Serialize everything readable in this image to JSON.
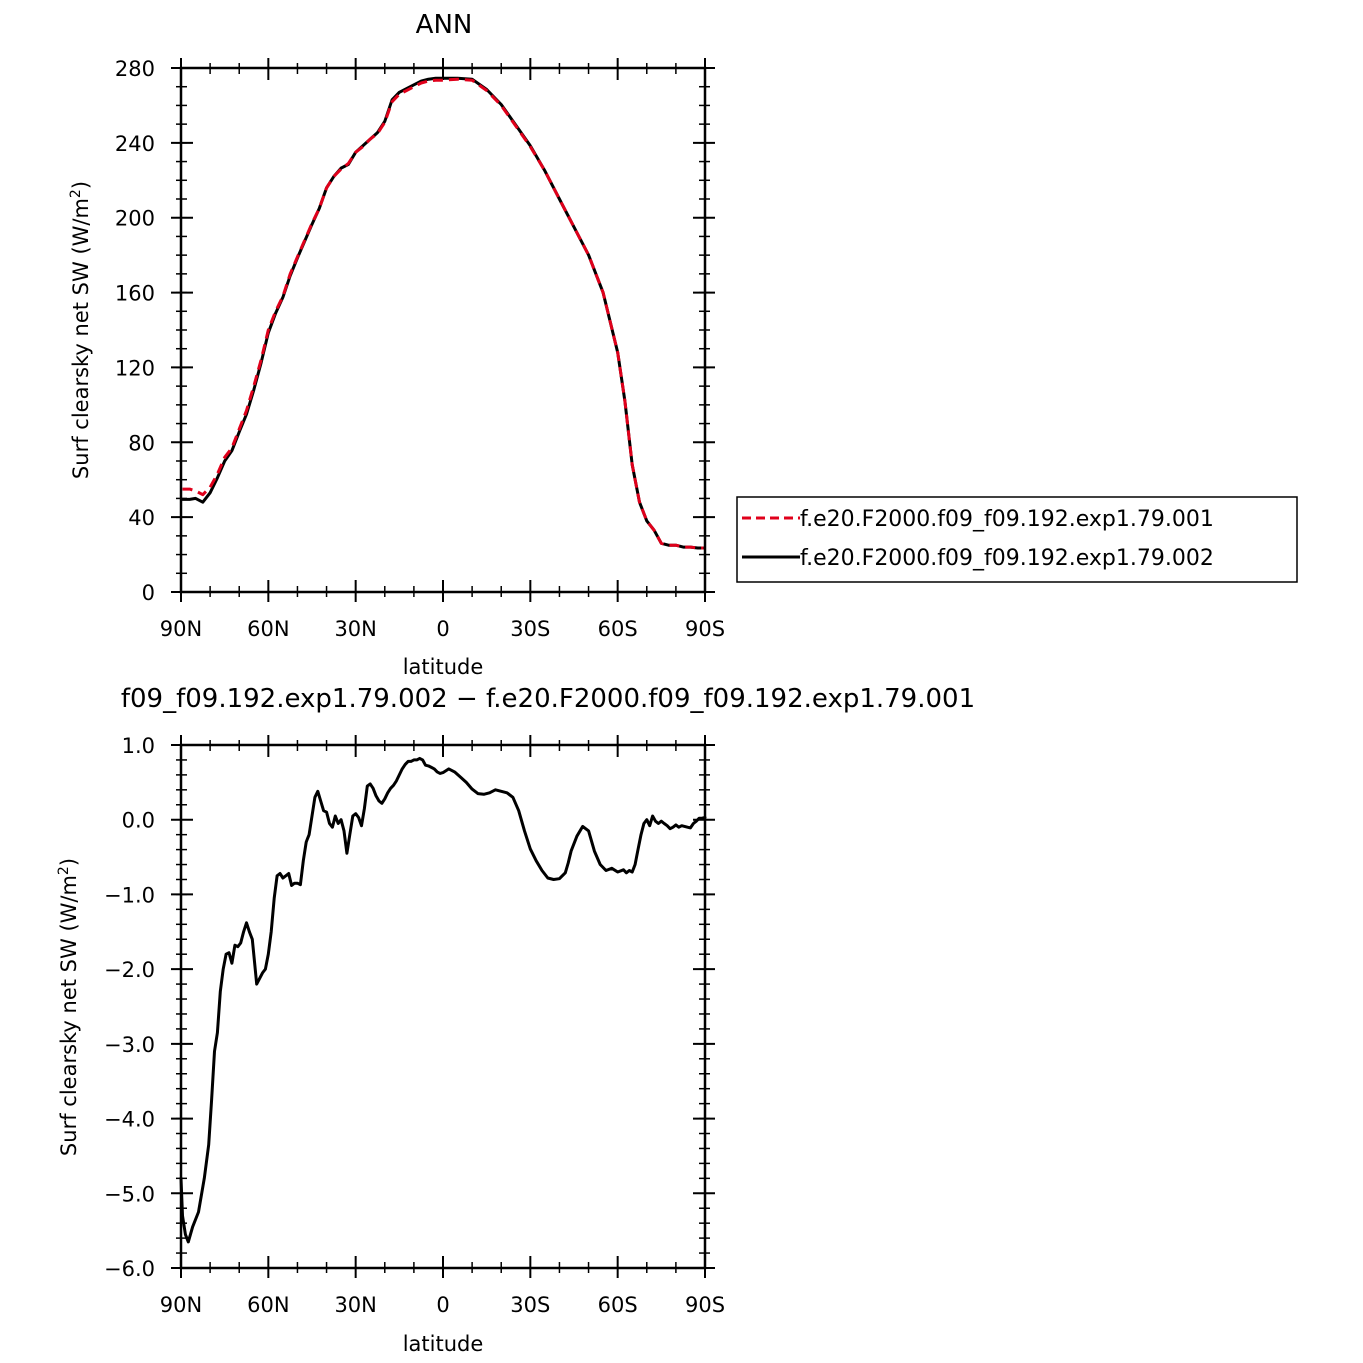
{
  "chart_data": [
    {
      "type": "line",
      "title": "ANN",
      "xlabel": "latitude",
      "ylabel": "Surf clearsky net SW (W/m",
      "ylabel_sup": "2",
      "ylabel_close": ")",
      "xlim": [
        90,
        -90
      ],
      "ylim": [
        0,
        280
      ],
      "xticks": [
        90,
        60,
        30,
        0,
        -30,
        -60,
        -90
      ],
      "xtick_labels": [
        "90N",
        "60N",
        "30N",
        "0",
        "30S",
        "60S",
        "90S"
      ],
      "yticks": [
        0,
        40,
        80,
        120,
        160,
        200,
        240,
        280
      ],
      "ytick_labels": [
        "0",
        "40",
        "80",
        "120",
        "160",
        "200",
        "240",
        "280"
      ],
      "legend": "right",
      "series": [
        {
          "name": "f.e20.F2000.f09_f09.192.exp1.79.001",
          "color": "#e0001b",
          "dash": "dashed",
          "x": [
            89.5,
            87,
            85,
            82.5,
            80,
            77.5,
            75,
            72.5,
            70,
            67.5,
            65,
            62.5,
            60,
            57.5,
            55,
            52.5,
            50,
            47.5,
            45,
            42.5,
            40,
            37.5,
            35,
            32.5,
            30,
            27.5,
            25,
            22.5,
            20,
            17.5,
            15,
            12.5,
            10,
            7.5,
            5,
            2.5,
            0,
            -5,
            -10,
            -15,
            -20,
            -25,
            -30,
            -35,
            -40,
            -45,
            -50,
            -55,
            -60,
            -62.5,
            -65,
            -67.5,
            -70,
            -72.5,
            -75,
            -77.5,
            -80,
            -82.5,
            -85,
            -87.5,
            -89.5
          ],
          "values": [
            55,
            55,
            54,
            52,
            56,
            63,
            72,
            77,
            87,
            97,
            110,
            124,
            140,
            150,
            158,
            170,
            179,
            188,
            197,
            205,
            216,
            222,
            226,
            229,
            235,
            238,
            242,
            245,
            251,
            262,
            266,
            268,
            270,
            272,
            273,
            273.5,
            273.5,
            274,
            273.5,
            268,
            260,
            249,
            238,
            225,
            210,
            195,
            180,
            160,
            128,
            102,
            68,
            48,
            38,
            33,
            26,
            25,
            25,
            24,
            24,
            23.5,
            23.5
          ]
        },
        {
          "name": "f.e20.F2000.f09_f09.192.exp1.79.002",
          "color": "#000000",
          "dash": "solid",
          "x": [
            89.5,
            87,
            85,
            82.5,
            80,
            77.5,
            75,
            72.5,
            70,
            67.5,
            65,
            62.5,
            60,
            57.5,
            55,
            52.5,
            50,
            47.5,
            45,
            42.5,
            40,
            37.5,
            35,
            32.5,
            30,
            27.5,
            25,
            22.5,
            20,
            17.5,
            15,
            12.5,
            10,
            7.5,
            5,
            2.5,
            0,
            -5,
            -10,
            -15,
            -20,
            -25,
            -30,
            -35,
            -40,
            -45,
            -50,
            -55,
            -60,
            -62.5,
            -65,
            -67.5,
            -70,
            -72.5,
            -75,
            -77.5,
            -80,
            -82.5,
            -85,
            -87.5,
            -89.5
          ],
          "values": [
            49.5,
            49.5,
            50,
            48,
            53,
            61,
            70,
            75.5,
            85.5,
            95,
            108,
            122.5,
            138.5,
            149,
            157.5,
            169,
            178.5,
            187.5,
            196.5,
            205,
            216,
            222,
            226.5,
            228.5,
            235,
            238.5,
            242,
            245.5,
            251.5,
            263,
            267,
            269,
            271,
            273,
            274,
            274.5,
            274.5,
            274.5,
            274,
            268.5,
            260.5,
            249.5,
            238.5,
            225,
            210,
            195,
            180,
            160,
            128,
            102,
            68,
            48,
            38,
            33,
            26,
            25,
            25,
            24,
            24,
            23.5,
            23.5
          ]
        }
      ]
    },
    {
      "type": "line",
      "title": "f09_f09.192.exp1.79.002 − f.e20.F2000.f09_f09.192.exp1.79.001",
      "xlabel": "latitude",
      "ylabel": "Surf clearsky net SW (W/m",
      "ylabel_sup": "2",
      "ylabel_close": ")",
      "xlim": [
        90,
        -90
      ],
      "ylim": [
        -6,
        1
      ],
      "xticks": [
        90,
        60,
        30,
        0,
        -30,
        -60,
        -90
      ],
      "xtick_labels": [
        "90N",
        "60N",
        "30N",
        "0",
        "30S",
        "60S",
        "90S"
      ],
      "yticks": [
        1,
        0,
        -1,
        -2,
        -3,
        -4,
        -5,
        -6
      ],
      "ytick_labels": [
        "1.0",
        "0.0",
        "−1.0",
        "−2.0",
        "−3.0",
        "−4.0",
        "−5.0",
        "−6.0"
      ],
      "series": [
        {
          "color": "#000000",
          "dash": "solid",
          "x": [
            90,
            89.5,
            88.5,
            87.5,
            86,
            84,
            82,
            80.5,
            79.5,
            78.5,
            77.5,
            76.5,
            75.5,
            74.5,
            73.5,
            72.5,
            71.5,
            70.5,
            69.5,
            68.5,
            67.5,
            66.5,
            65.5,
            64,
            62,
            61,
            60,
            59,
            58,
            57,
            56,
            55,
            54,
            53,
            52,
            51,
            50,
            49,
            48,
            47,
            46.5,
            46,
            45,
            44,
            43,
            42,
            41,
            40,
            39,
            38,
            37,
            36,
            35,
            34,
            33,
            32,
            31,
            30,
            29,
            28,
            27,
            26,
            25,
            24,
            23,
            22,
            21,
            20,
            19,
            18,
            17,
            16,
            15,
            14,
            13,
            12,
            11,
            10,
            9,
            8,
            7,
            6,
            5,
            4,
            3,
            2,
            1,
            0,
            -2,
            -4,
            -6,
            -8,
            -10,
            -12,
            -14,
            -16,
            -18,
            -20,
            -22,
            -24,
            -26,
            -28,
            -30,
            -32,
            -34,
            -36,
            -38,
            -40,
            -42,
            -43,
            -44,
            -46,
            -48,
            -50,
            -52,
            -54,
            -56,
            -58,
            -60,
            -62,
            -63,
            -64,
            -65,
            -66,
            -67,
            -68,
            -69,
            -70,
            -71,
            -72,
            -73,
            -74,
            -75,
            -76,
            -77,
            -78,
            -79,
            -80,
            -81,
            -82,
            -83,
            -84,
            -85,
            -86,
            -87,
            -88,
            -89,
            -90
          ],
          "values": [
            -4.8,
            -5.3,
            -5.55,
            -5.65,
            -5.45,
            -5.25,
            -4.8,
            -4.35,
            -3.75,
            -3.1,
            -2.85,
            -2.3,
            -2.0,
            -1.8,
            -1.78,
            -1.92,
            -1.68,
            -1.7,
            -1.65,
            -1.5,
            -1.38,
            -1.5,
            -1.6,
            -2.2,
            -2.05,
            -2.0,
            -1.8,
            -1.5,
            -1.05,
            -0.75,
            -0.72,
            -0.78,
            -0.75,
            -0.72,
            -0.88,
            -0.85,
            -0.85,
            -0.87,
            -0.55,
            -0.3,
            -0.25,
            -0.2,
            0.05,
            0.3,
            0.38,
            0.25,
            0.12,
            0.1,
            -0.05,
            -0.1,
            0.05,
            -0.05,
            0.0,
            -0.15,
            -0.45,
            -0.2,
            0.05,
            0.08,
            0.03,
            -0.08,
            0.15,
            0.45,
            0.48,
            0.42,
            0.32,
            0.25,
            0.22,
            0.28,
            0.36,
            0.42,
            0.46,
            0.52,
            0.6,
            0.68,
            0.74,
            0.78,
            0.78,
            0.8,
            0.8,
            0.82,
            0.8,
            0.73,
            0.72,
            0.7,
            0.68,
            0.64,
            0.62,
            0.63,
            0.68,
            0.64,
            0.57,
            0.5,
            0.41,
            0.35,
            0.34,
            0.36,
            0.4,
            0.38,
            0.36,
            0.3,
            0.12,
            -0.15,
            -0.39,
            -0.55,
            -0.68,
            -0.78,
            -0.8,
            -0.79,
            -0.71,
            -0.58,
            -0.42,
            -0.22,
            -0.09,
            -0.15,
            -0.42,
            -0.6,
            -0.68,
            -0.65,
            -0.7,
            -0.67,
            -0.71,
            -0.68,
            -0.7,
            -0.6,
            -0.4,
            -0.2,
            -0.05,
            0.0,
            -0.08,
            0.05,
            -0.02,
            -0.05,
            -0.02,
            -0.05,
            -0.08,
            -0.12,
            -0.1,
            -0.07,
            -0.1,
            -0.08,
            -0.09,
            -0.1,
            -0.11,
            -0.05,
            -0.02,
            0.02,
            0.02,
            0.03
          ]
        }
      ]
    }
  ]
}
